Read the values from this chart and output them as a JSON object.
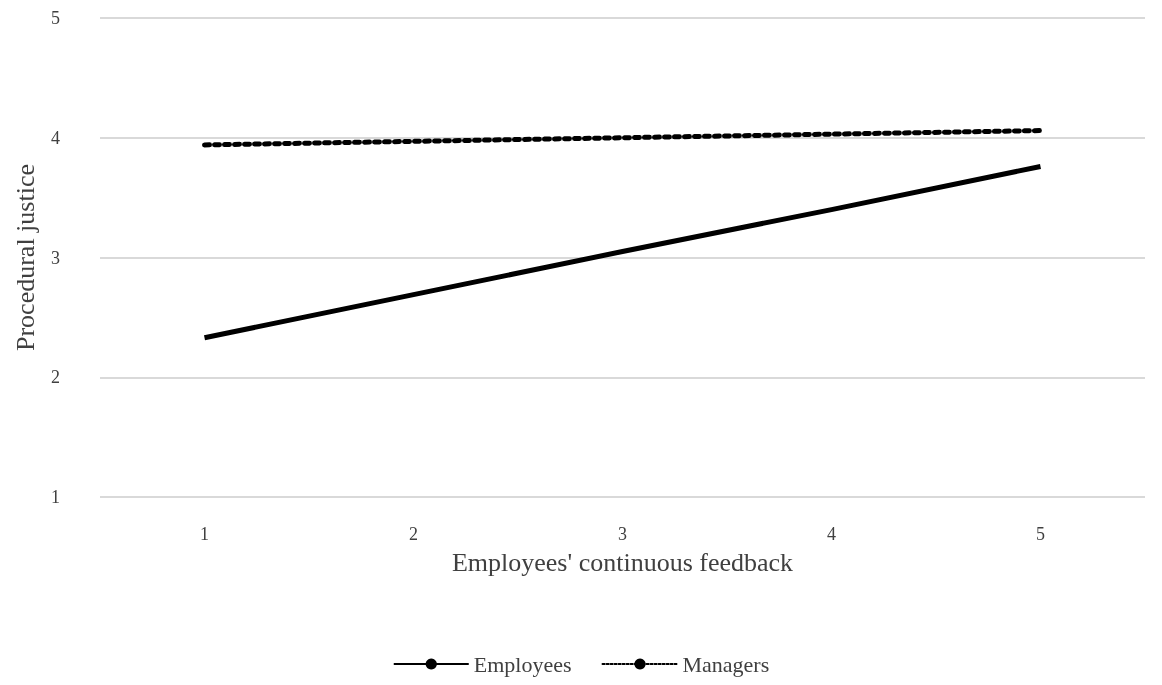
{
  "chart_data": {
    "type": "line",
    "xlabel": "Employees' continuous feedback",
    "ylabel": "Procedural justice",
    "categories": [
      "1",
      "2",
      "3",
      "4",
      "5"
    ],
    "series": [
      {
        "name": "Employees",
        "color": "#000000",
        "line_style": "solid",
        "values": [
          2.33,
          2.69,
          3.05,
          3.4,
          3.76
        ]
      },
      {
        "name": "Managers",
        "color": "#000000",
        "line_style": "dotted",
        "values": [
          3.94,
          3.97,
          4.0,
          4.03,
          4.06
        ]
      }
    ],
    "ylim": [
      1,
      5
    ],
    "yticks": [
      1,
      2,
      3,
      4,
      5
    ],
    "grid": "y",
    "legend": "bottom",
    "marker": "none"
  }
}
